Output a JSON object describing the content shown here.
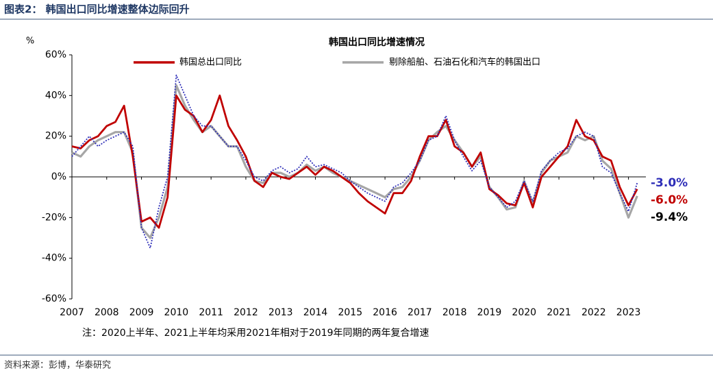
{
  "header": "图表2： 韩国出口同比增速整体边际回升",
  "source": "资料来源：彭博，华泰研究",
  "chart_data": {
    "type": "line",
    "title": "韩国出口同比增速情况",
    "y_unit": "%",
    "note": "注：2020上半年、2021上半年均采用2021年相对于2019年同期的两年复合增速",
    "x": [
      2007,
      2007.25,
      2007.5,
      2007.75,
      2008,
      2008.25,
      2008.5,
      2008.75,
      2009,
      2009.25,
      2009.5,
      2009.75,
      2010,
      2010.25,
      2010.5,
      2010.75,
      2011,
      2011.25,
      2011.5,
      2011.75,
      2012,
      2012.25,
      2012.5,
      2012.75,
      2013,
      2013.25,
      2013.5,
      2013.75,
      2014,
      2014.25,
      2014.5,
      2014.75,
      2015,
      2015.25,
      2015.5,
      2015.75,
      2016,
      2016.25,
      2016.5,
      2016.75,
      2017,
      2017.25,
      2017.5,
      2017.75,
      2018,
      2018.25,
      2018.5,
      2018.75,
      2019,
      2019.25,
      2019.5,
      2019.75,
      2020,
      2020.25,
      2020.5,
      2020.75,
      2021,
      2021.25,
      2021.5,
      2021.75,
      2022,
      2022.25,
      2022.5,
      2022.75,
      2023,
      2023.25
    ],
    "xlim": [
      2007,
      2023.5
    ],
    "xticks": [
      2007,
      2008,
      2009,
      2010,
      2011,
      2012,
      2013,
      2014,
      2015,
      2016,
      2017,
      2018,
      2019,
      2020,
      2021,
      2022,
      2023
    ],
    "ylim": [
      -60,
      60
    ],
    "yticks": [
      {
        "value": -60,
        "label": "-60%"
      },
      {
        "value": -40,
        "label": "-40%"
      },
      {
        "value": -20,
        "label": "-20%"
      },
      {
        "value": 0,
        "label": "0%"
      },
      {
        "value": 20,
        "label": "20%"
      },
      {
        "value": 40,
        "label": "40%"
      },
      {
        "value": 60,
        "label": "60%"
      }
    ],
    "series": [
      {
        "name": "韩国总出口同比",
        "color": "#c00000",
        "values": [
          15,
          14,
          18,
          20,
          25,
          27,
          35,
          10,
          -22,
          -20,
          -25,
          -10,
          40,
          33,
          30,
          22,
          28,
          40,
          25,
          18,
          10,
          -2,
          -5,
          2,
          0,
          -1,
          2,
          5,
          1,
          5,
          3,
          0,
          -3,
          -8,
          -12,
          -15,
          -18,
          -8,
          -8,
          -2,
          10,
          20,
          20,
          28,
          15,
          12,
          5,
          12,
          -6,
          -9,
          -13,
          -14,
          -3,
          -15,
          0,
          5,
          10,
          15,
          28,
          20,
          18,
          10,
          8,
          -5,
          -14,
          -6
        ]
      },
      {
        "name": "剔除船舶、石油石化和汽车的韩国出口",
        "color": "#a6a6a6",
        "values": [
          12,
          10,
          15,
          18,
          20,
          22,
          22,
          12,
          -25,
          -30,
          -20,
          -5,
          45,
          35,
          28,
          22,
          25,
          20,
          15,
          15,
          5,
          -2,
          -3,
          2,
          2,
          0,
          2,
          6,
          3,
          5,
          2,
          0,
          -2,
          -4,
          -6,
          -8,
          -10,
          -6,
          -5,
          0,
          8,
          18,
          22,
          25,
          18,
          12,
          5,
          10,
          -5,
          -10,
          -16,
          -15,
          -2,
          -13,
          2,
          8,
          10,
          12,
          20,
          18,
          20,
          8,
          4,
          -8,
          -20,
          -9.4
        ]
      },
      {
        "color": "#2e2eb8",
        "values": [
          10,
          15,
          20,
          15,
          18,
          20,
          22,
          15,
          -25,
          -35,
          -15,
          0,
          50,
          40,
          30,
          25,
          25,
          20,
          15,
          15,
          8,
          0,
          -2,
          3,
          5,
          2,
          4,
          10,
          5,
          6,
          4,
          2,
          -2,
          -5,
          -8,
          -10,
          -12,
          -5,
          -3,
          2,
          8,
          18,
          20,
          30,
          18,
          10,
          3,
          8,
          -5,
          -10,
          -15,
          -12,
          -2,
          -12,
          3,
          8,
          12,
          14,
          20,
          22,
          20,
          5,
          2,
          -8,
          -17,
          -3
        ]
      }
    ],
    "annotations": [
      {
        "value": -3.0,
        "label": "-3.0%",
        "color": "#2e2eb8"
      },
      {
        "value": -6.0,
        "label": "-6.0%",
        "color": "#c00000"
      },
      {
        "value": -9.4,
        "label": "-9.4%",
        "color": "#000000"
      }
    ]
  }
}
